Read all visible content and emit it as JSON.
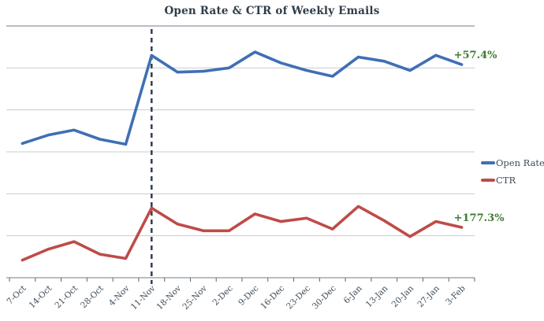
{
  "chart_data": {
    "type": "line",
    "title": "Open Rate & CTR of Weekly Emails",
    "categories": [
      "7-Oct",
      "14-Oct",
      "21-Oct",
      "28-Oct",
      "4-Nov",
      "11-Nov",
      "18-Nov",
      "25-Nov",
      "2-Dec",
      "9-Dec",
      "16-Dec",
      "23-Dec",
      "30-Dec",
      "6-Jan",
      "13-Jan",
      "20-Jan",
      "27-Jan",
      "3-Feb"
    ],
    "series": [
      {
        "name": "Open Rate",
        "color": "#3F6FB5",
        "values": [
          16.0,
          17.0,
          17.6,
          16.5,
          15.9,
          26.5,
          24.5,
          24.6,
          25.0,
          26.9,
          25.6,
          24.7,
          24.0,
          26.3,
          25.8,
          24.7,
          26.5,
          25.4
        ],
        "annotation": "+57.4%"
      },
      {
        "name": "CTR",
        "color": "#BE4B48",
        "values": [
          2.1,
          3.4,
          4.3,
          2.8,
          2.3,
          8.3,
          6.4,
          5.6,
          5.6,
          7.6,
          6.7,
          7.1,
          5.8,
          8.5,
          6.8,
          4.9,
          6.7,
          6.0
        ],
        "annotation": "+177.3%"
      }
    ],
    "annotation_color": "#3E7B2F",
    "marker": {
      "type": "dashed-vertical-line",
      "at_category": "11-Nov"
    },
    "ylim": [
      0,
      30
    ],
    "gridline_step": 5,
    "y_axis_labels_visible": false,
    "legend_position": "right",
    "x_label_rotation": -45,
    "grid_color": "#C7CBCF",
    "frame_color": "#9FA9B3",
    "tick_color": "#56646F",
    "label_color": "#3E4C59",
    "marker_color": "#36424F"
  }
}
